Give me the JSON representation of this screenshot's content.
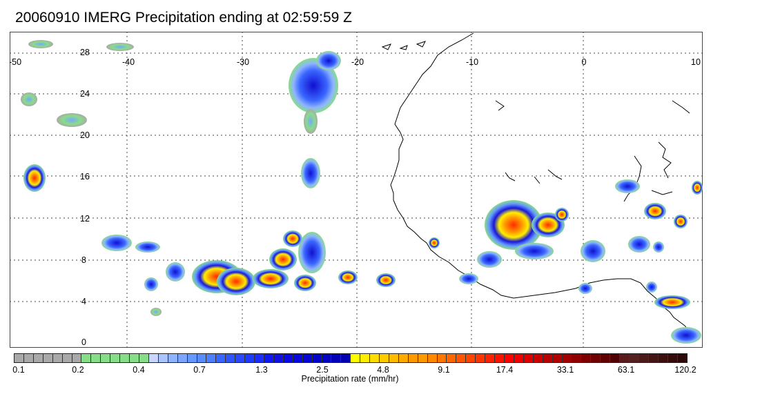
{
  "title": "20060910 IMERG Precipitation ending at 02:59:59 Z",
  "map": {
    "lon_range": [
      -50,
      10
    ],
    "lat_range": [
      -0.5,
      30
    ],
    "lon_ticks": [
      "-50",
      "-40",
      "-30",
      "-20",
      "-10",
      "0",
      "10"
    ],
    "lat_ticks": [
      "28",
      "24",
      "20",
      "16",
      "12",
      "8",
      "4",
      "0"
    ],
    "gridlines": "dotted",
    "coastline_color": "#000000"
  },
  "colorbar": {
    "title": "Precipitation rate (mm/hr)",
    "tick_labels": [
      "0.1",
      "0.2",
      "0.4",
      "0.7",
      "1.3",
      "2.5",
      "4.8",
      "9.1",
      "17.4",
      "33.1",
      "63.1",
      "120.2"
    ],
    "colors": [
      "#a9a9a9",
      "#a9a9a9",
      "#a9a9a9",
      "#a9a9a9",
      "#a9a9a9",
      "#a9a9a9",
      "#a9a9a9",
      "#88dd88",
      "#88dd88",
      "#88dd88",
      "#88dd88",
      "#88dd88",
      "#88dd88",
      "#88dd88",
      "#c8d6ff",
      "#a9c4ff",
      "#8fb4ff",
      "#7aa6ff",
      "#6699ff",
      "#5a8cff",
      "#4d80ff",
      "#3a66ff",
      "#2f55ff",
      "#2a48ff",
      "#1f3aff",
      "#1a2dff",
      "#1018f0",
      "#1010e0",
      "#0a0ae0",
      "#0808d8",
      "#0606d0",
      "#0404c8",
      "#0303c0",
      "#0202b8",
      "#0000b0",
      "#ffff00",
      "#ffee00",
      "#ffdd00",
      "#ffcc00",
      "#ffbb00",
      "#ffaa00",
      "#ff9900",
      "#ff9900",
      "#ff8800",
      "#ff7700",
      "#ff6600",
      "#ff5500",
      "#ff4400",
      "#ff3300",
      "#ff2200",
      "#ff1100",
      "#ff0000",
      "#ee0000",
      "#dd0000",
      "#cc0000",
      "#bb0000",
      "#b00000",
      "#a00000",
      "#900000",
      "#800000",
      "#700000",
      "#600000",
      "#500000",
      "#5a1a1a",
      "#552020",
      "#4d1a1a",
      "#451515",
      "#3d1010",
      "#350c0c",
      "#2d0808"
    ]
  }
}
